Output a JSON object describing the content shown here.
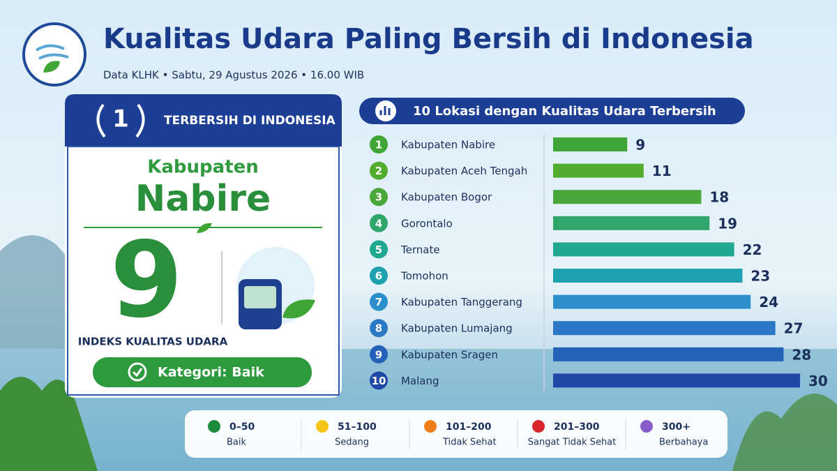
{
  "header": {
    "title": "Kualitas Udara Paling Bersih di Indonesia",
    "subtitle": "Data KLHK • Sabtu, 29 Agustus 2026 • 16.00 WIB"
  },
  "highlight": {
    "rank": 1,
    "badge": "TERBERSIH DI INDONESIA",
    "region_type": "Kabupaten",
    "region_name": "Nabire",
    "index": 9,
    "index_label": "INDEKS KUALITAS UDARA",
    "category": "Kategori: Baik"
  },
  "chart_data": {
    "type": "hbar",
    "title": "10 Lokasi dengan Kualitas Udara Terbersih",
    "ranks": [
      1,
      2,
      3,
      4,
      5,
      6,
      7,
      8,
      9,
      10
    ],
    "categories": [
      "Kabupaten Nabire",
      "Kabupaten Aceh Tengah",
      "Kabupaten Bogor",
      "Gorontalo",
      "Ternate",
      "Tomohon",
      "Kabupaten Tanggerang",
      "Kabupaten Lumajang",
      "Kabupaten Sragen",
      "Malang"
    ],
    "values": [
      9,
      11,
      18,
      19,
      22,
      23,
      24,
      27,
      28,
      30
    ],
    "colors": [
      "#3fa535",
      "#52ad2f",
      "#4aa83a",
      "#2fa66a",
      "#20a890",
      "#1ea2b0",
      "#2a8fca",
      "#2a78c6",
      "#2461b8",
      "#1f47a6"
    ]
  },
  "legend": {
    "items": [
      {
        "range": "0–50",
        "label": "Baik",
        "color": "#1e8a3c"
      },
      {
        "range": "51–100",
        "label": "Sedang",
        "color": "#f5c518"
      },
      {
        "range": "101–200",
        "label": "Tidak Sehat",
        "color": "#ef7d1a"
      },
      {
        "range": "201–300",
        "label": "Sangat Tidak Sehat",
        "color": "#d7262e"
      },
      {
        "range": "300+",
        "label": "Berbahaya",
        "color": "#8a5cc9"
      }
    ]
  }
}
